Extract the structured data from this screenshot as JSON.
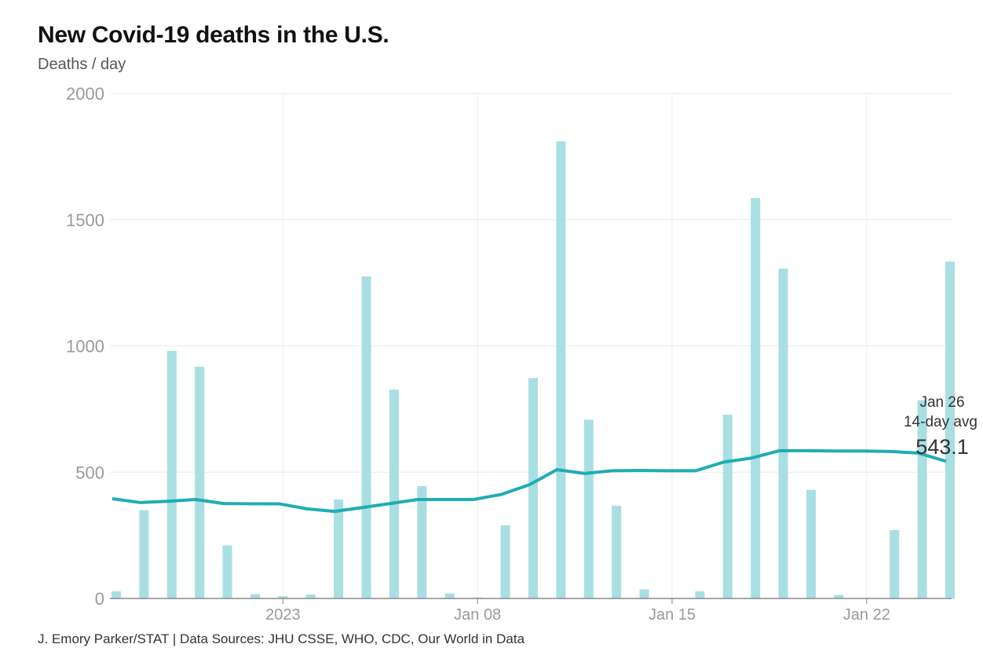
{
  "title": "New Covid-19 deaths in the U.S.",
  "subtitle": "Deaths / day",
  "footer": "J. Emory Parker/STAT | Data Sources: JHU CSSE, WHO, CDC, Our World in Data",
  "chart_data": {
    "type": "bar",
    "title": "New Covid-19 deaths in the U.S.",
    "ylabel": "Deaths / day",
    "ylim": [
      0,
      2000
    ],
    "yticks": [
      0,
      500,
      1000,
      1500,
      2000
    ],
    "xticks": [
      {
        "date": "2023-01-01",
        "label": "2023"
      },
      {
        "date": "2023-01-08",
        "label": "Jan 08"
      },
      {
        "date": "2023-01-15",
        "label": "Jan 15"
      },
      {
        "date": "2023-01-22",
        "label": "Jan 22"
      }
    ],
    "grid": true,
    "x": [
      "2022-12-27",
      "2022-12-28",
      "2022-12-29",
      "2022-12-30",
      "2022-12-31",
      "2023-01-01",
      "2023-01-02",
      "2023-01-03",
      "2023-01-04",
      "2023-01-05",
      "2023-01-06",
      "2023-01-07",
      "2023-01-08",
      "2023-01-09",
      "2023-01-10",
      "2023-01-11",
      "2023-01-12",
      "2023-01-13",
      "2023-01-14",
      "2023-01-15",
      "2023-01-16",
      "2023-01-17",
      "2023-01-18",
      "2023-01-19",
      "2023-01-20",
      "2023-01-21",
      "2023-01-22",
      "2023-01-23",
      "2023-01-24",
      "2023-01-25",
      "2023-01-26"
    ],
    "series": [
      {
        "type": "bar",
        "color": "#a8dfe3",
        "values": [
          28,
          350,
          980,
          918,
          210,
          17,
          9,
          16,
          392,
          1275,
          827,
          445,
          20,
          4,
          290,
          873,
          1810,
          708,
          367,
          36,
          0,
          28,
          728,
          1586,
          1306,
          430,
          14,
          0,
          271,
          785,
          1334
        ]
      },
      {
        "type": "line",
        "color": "#1fadb3",
        "values": [
          395,
          380,
          385,
          392,
          376,
          375,
          375,
          355,
          345,
          360,
          376,
          392,
          392,
          392,
          412,
          450,
          510,
          495,
          506,
          507,
          506,
          506,
          540,
          556,
          585,
          585,
          584,
          584,
          582,
          576,
          543.1
        ]
      }
    ],
    "annotation": {
      "date_label": "Jan 26",
      "label": "14-day avg",
      "value": "543.1"
    }
  }
}
